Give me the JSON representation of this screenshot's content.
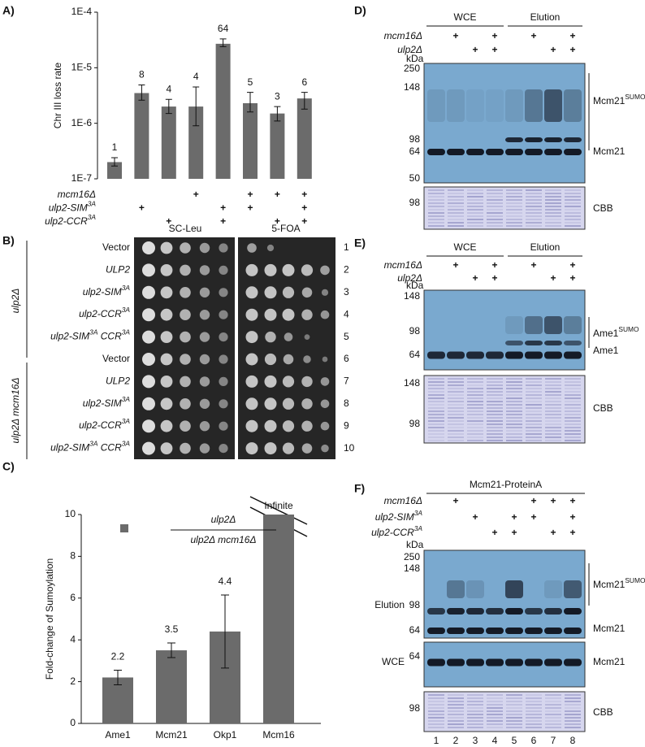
{
  "panel_labels": [
    "A)",
    "B)",
    "C)",
    "D)",
    "E)",
    "F)"
  ],
  "chart_data": [
    {
      "type": "bar",
      "y_label": "Chr III loss rate",
      "log_scale": true,
      "ylim": [
        1e-07,
        0.0001
      ],
      "yticks": [
        {
          "value": 1e-07,
          "label": "1E-7"
        },
        {
          "value": 1e-06,
          "label": "1E-6"
        },
        {
          "value": 1e-05,
          "label": "1E-5"
        },
        {
          "value": 0.0001,
          "label": "1E-4"
        }
      ],
      "values": [
        2e-07,
        3.5e-06,
        2e-06,
        2e-06,
        2.7e-05,
        2.3e-06,
        1.5e-06,
        2.8e-06
      ],
      "error_low": [
        1.7e-07,
        2.6e-06,
        1.5e-06,
        9e-07,
        2.4e-05,
        1.6e-06,
        1.1e-06,
        1.8e-06
      ],
      "error_high": [
        2.4e-07,
        4.9e-06,
        2.7e-06,
        4.5e-06,
        3.3e-05,
        3.6e-06,
        2e-06,
        3.6e-06
      ],
      "bar_labels": [
        1,
        8,
        4,
        4,
        64,
        5,
        3,
        6
      ],
      "color": "#6b6b6b",
      "genotype_rows": [
        {
          "label": "mcm16Δ",
          "marks": [
            null,
            null,
            null,
            "+",
            null,
            "+",
            "+",
            "+"
          ]
        },
        {
          "label": [
            "ulp2-SIM",
            "3A"
          ],
          "marks": [
            null,
            "+",
            null,
            null,
            "+",
            "+",
            null,
            "+"
          ]
        },
        {
          "label": [
            "ulp2-CCR",
            "3A"
          ],
          "marks": [
            null,
            null,
            "+",
            null,
            "+",
            null,
            "+",
            "+"
          ]
        }
      ]
    },
    {
      "type": "bar",
      "y_label": "Fold-change of Sumoylation",
      "ylim": [
        0,
        10
      ],
      "yticks": [
        0,
        2,
        4,
        6,
        8,
        10
      ],
      "categories": [
        "Ame1",
        "Mcm21",
        "Okp1",
        "Mcm16"
      ],
      "values": [
        2.2,
        3.5,
        4.4,
        10
      ],
      "errors": [
        0.35,
        0.35,
        1.75,
        null
      ],
      "annotation": "Infinite",
      "legend": {
        "numerator": "ulp2Δ",
        "denominator": "ulp2Δ mcm16Δ"
      },
      "color": "#6b6b6b"
    }
  ],
  "plates": {
    "media": [
      "SC-Leu",
      "5-FOA"
    ],
    "groups": [
      "ulp2Δ",
      "ulp2Δ mcm16Δ"
    ],
    "strains": [
      "Vector",
      "ULP2",
      [
        "ulp2-SIM",
        "3A"
      ],
      [
        "ulp2-CCR",
        "3A"
      ],
      [
        "ulp2-SIM",
        "3A",
        " CCR",
        "3A"
      ],
      "Vector",
      "ULP2",
      [
        "ulp2-SIM",
        "3A"
      ],
      [
        "ulp2-CCR",
        "3A"
      ],
      [
        "ulp2-SIM",
        "3A",
        " CCR",
        "3A"
      ]
    ],
    "row_numbers": [
      1,
      2,
      3,
      4,
      5,
      6,
      7,
      8,
      9,
      10
    ]
  },
  "blots": [
    {
      "groups": [
        "WCE",
        "Elution"
      ],
      "genotype_rows": [
        {
          "label": "mcm16Δ",
          "marks": [
            null,
            "+",
            null,
            "+",
            null,
            "+",
            null,
            "+"
          ]
        },
        {
          "label": "ulp2Δ",
          "marks": [
            null,
            null,
            "+",
            "+",
            null,
            null,
            "+",
            "+"
          ]
        }
      ],
      "kda": "kDa",
      "panels": [
        {
          "markers": [
            250,
            148,
            98,
            64,
            50
          ],
          "labels": [
            [
              "Mcm21",
              "SUMO"
            ],
            "Mcm21"
          ]
        },
        {
          "markers": [
            98
          ],
          "labels": [
            "CBB"
          ]
        }
      ]
    },
    {
      "groups": [
        "WCE",
        "Elution"
      ],
      "genotype_rows": [
        {
          "label": "mcm16Δ",
          "marks": [
            null,
            "+",
            null,
            "+",
            null,
            "+",
            null,
            "+"
          ]
        },
        {
          "label": "ulp2Δ",
          "marks": [
            null,
            null,
            "+",
            "+",
            null,
            null,
            "+",
            "+"
          ]
        }
      ],
      "kda": "kDa",
      "panels": [
        {
          "markers": [
            148,
            98,
            64
          ],
          "labels": [
            [
              "Ame1",
              "SUMO"
            ],
            "Ame1"
          ]
        },
        {
          "markers": [
            148,
            98
          ],
          "labels": [
            "CBB"
          ]
        }
      ]
    },
    {
      "groups": [
        "Mcm21-ProteinA"
      ],
      "genotype_rows": [
        {
          "label": "mcm16Δ",
          "marks": [
            null,
            "+",
            null,
            null,
            null,
            "+",
            "+",
            "+"
          ]
        },
        {
          "label": [
            "ulp2-SIM",
            "3A"
          ],
          "marks": [
            null,
            null,
            "+",
            null,
            "+",
            "+",
            null,
            "+"
          ]
        },
        {
          "label": [
            "ulp2-CCR",
            "3A"
          ],
          "marks": [
            null,
            null,
            null,
            "+",
            "+",
            null,
            "+",
            "+"
          ]
        }
      ],
      "kda": "kDa",
      "panels": [
        {
          "side_label": "Elution",
          "markers": [
            250,
            148,
            98,
            64
          ],
          "labels": [
            [
              "Mcm21",
              "SUMO"
            ],
            "Mcm21"
          ]
        },
        {
          "side_label": "WCE",
          "markers": [
            64
          ],
          "labels": [
            "Mcm21"
          ]
        },
        {
          "markers": [
            98
          ],
          "labels": [
            "CBB"
          ]
        }
      ],
      "lane_numbers": [
        1,
        2,
        3,
        4,
        5,
        6,
        7,
        8
      ]
    }
  ]
}
